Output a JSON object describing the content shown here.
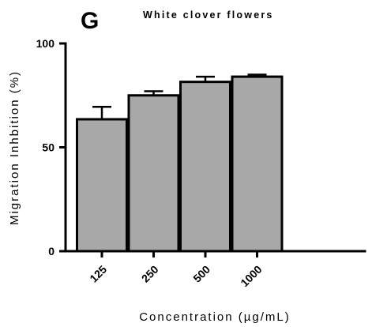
{
  "panel_label": "G",
  "chart_data": {
    "type": "bar",
    "title": "White clover flowers",
    "xlabel": "Concentration (µg/mL)",
    "ylabel": "Migration Inhbition (%)",
    "categories": [
      "125",
      "250",
      "500",
      "1000"
    ],
    "values": [
      63.5,
      75.0,
      81.5,
      84.0
    ],
    "errors": [
      6.0,
      2.0,
      2.5,
      1.0
    ],
    "ylim": [
      0,
      100
    ],
    "yticks": [
      0,
      50,
      100
    ],
    "ytick_labels": [
      "0",
      "50",
      "100"
    ],
    "bar_color": "#a8a8a8",
    "edge_color": "#000000",
    "grid": false,
    "legend": "none"
  }
}
